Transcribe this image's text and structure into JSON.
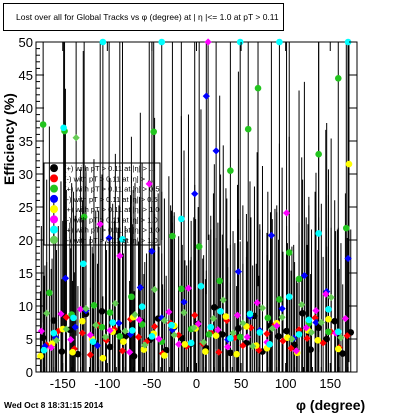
{
  "title": "Lost over all for Global Tracks vs φ (degree) at | η |<= 1.0 at pT > 0.11",
  "timestamp": "Wed Oct  8 18:31:15 2014",
  "colors": {
    "black": "#000000",
    "red": "#ff0000",
    "green": "#22c41e",
    "blue": "#0000ff",
    "yellow": "#ffff00",
    "magenta": "#ff00ff",
    "cyan": "#00ffff",
    "lightgreen": "#66cc55"
  },
  "chart_data": {
    "type": "scatter",
    "xlabel": "φ (degree)",
    "ylabel": "Efficiency (%)",
    "xlim": [
      -180,
      180
    ],
    "ylim": [
      0,
      50
    ],
    "x_ticks": [
      -150,
      -100,
      -50,
      0,
      50,
      100,
      150
    ],
    "y_ticks": [
      0,
      5,
      10,
      15,
      20,
      25,
      30,
      35,
      40,
      45,
      50
    ],
    "grid": false,
    "legend_position": "left-middle",
    "legend_entries": [
      "(+) with pT > 0.11 at |η| > ...",
      "(-) with pT > 0.11 at |η| > ...",
      "(+) with pT > 0.11 at |η| > 0.5",
      "(-) with pT > 0.11 at |η| > 0.5",
      "(+) with pT > 0.11 at |η| > 1.0",
      "(-) with pT > 0.11 at |η| > 1.0",
      "(+) with pT > 0.11 at |η| > 1.0",
      "(-) with pT > 0.11 at |η| > 1.0"
    ],
    "series": [
      {
        "color": "#000000",
        "x": [
          -172,
          -160,
          -151,
          -142,
          -133,
          -124,
          -115,
          -106,
          -97,
          -88,
          -79,
          -70,
          -61,
          -52,
          -43,
          -34,
          -25,
          -16,
          -7,
          2,
          11,
          20,
          29,
          38,
          47,
          56,
          65,
          74,
          83,
          92,
          101,
          110,
          119,
          128,
          137,
          146,
          155,
          164,
          173
        ],
        "y": [
          5.2,
          7.8,
          3.1,
          6.4,
          2.7,
          8.8,
          4.5,
          9.2,
          3.8,
          6.1,
          5.5,
          2.4,
          7.6,
          4.9,
          8.1,
          3.3,
          6.8,
          5.1,
          4.2,
          7.3,
          3.6,
          9.8,
          5.7,
          2.9,
          6.6,
          4.4,
          8.5,
          3.1,
          7.0,
          5.4,
          6.2,
          4.1,
          8.9,
          3.4,
          6.7,
          5.0,
          7.7,
          2.8,
          6.0
        ]
      },
      {
        "color": "#ff0000",
        "x": [
          -168,
          -155,
          -146,
          -137,
          -128,
          -119,
          -110,
          -101,
          -92,
          -83,
          -74,
          -65,
          -56,
          -47,
          -38,
          -29,
          -20,
          -11,
          -2,
          7,
          16,
          25,
          34,
          43,
          52,
          61,
          70,
          79,
          88,
          97,
          106,
          115,
          124,
          133,
          142,
          151,
          160,
          169
        ],
        "y": [
          4.1,
          6.2,
          8.3,
          3.5,
          5.9,
          2.6,
          7.1,
          4.8,
          6.5,
          3.2,
          8.0,
          5.3,
          4.6,
          6.9,
          2.8,
          7.4,
          5.6,
          3.9,
          8.6,
          4.3,
          6.0,
          3.0,
          7.8,
          5.2,
          4.0,
          6.7,
          3.3,
          5.8,
          7.2,
          4.7,
          3.6,
          6.4,
          5.1,
          8.2,
          4.4,
          6.1,
          3.7,
          5.5
        ]
      },
      {
        "color": "#22c41e",
        "x": [
          -172,
          -165,
          -148,
          -140,
          -126,
          -115,
          -106,
          -97,
          -86,
          -73,
          -61,
          -48,
          -39,
          -27,
          -17,
          -6,
          3,
          14,
          26,
          38,
          49,
          58,
          69,
          80,
          93,
          104,
          115,
          126,
          137,
          148,
          159,
          168
        ],
        "y": [
          37.5,
          12.0,
          36.5,
          8.7,
          23.5,
          10.1,
          6.8,
          9.0,
          5.4,
          11.4,
          7.2,
          36.4,
          4.6,
          20.6,
          12.6,
          6.5,
          19.0,
          5.7,
          13.8,
          30.5,
          5.3,
          36.8,
          43.0,
          8.2,
          11.0,
          18.1,
          14.1,
          7.4,
          33.0,
          6.1,
          44.5,
          21.8
        ]
      },
      {
        "color": "#0000ff",
        "x": [
          -170,
          -158,
          -147,
          -136,
          -124,
          -111,
          -98,
          -87,
          -74,
          -63,
          -50,
          -39,
          -27,
          -14,
          -2,
          11,
          22,
          35,
          47,
          60,
          71,
          84,
          96,
          109,
          121,
          134,
          146,
          158,
          170
        ],
        "y": [
          3.9,
          5.2,
          14.2,
          6.8,
          9.3,
          4.0,
          20.3,
          7.4,
          5.7,
          12.8,
          18.3,
          8.2,
          6.4,
          10.6,
          27.0,
          41.8,
          33.5,
          4.9,
          15.2,
          8.4,
          6.3,
          20.7,
          9.6,
          5.1,
          14.6,
          7.5,
          12.2,
          6.0,
          17.2
        ]
      },
      {
        "color": "#ffff00",
        "x": [
          -175,
          -162,
          -150,
          -139,
          -128,
          -117,
          -105,
          -94,
          -82,
          -71,
          -59,
          -48,
          -36,
          -25,
          -13,
          -1,
          10,
          22,
          33,
          45,
          56,
          67,
          79,
          90,
          102,
          113,
          125,
          136,
          148,
          159,
          171
        ],
        "y": [
          2.4,
          4.3,
          6.5,
          3.0,
          7.7,
          5.0,
          2.1,
          6.1,
          4.6,
          8.3,
          3.4,
          5.8,
          2.5,
          7.0,
          4.2,
          6.6,
          3.1,
          5.5,
          8.4,
          2.7,
          6.9,
          4.0,
          3.6,
          7.4,
          5.2,
          2.9,
          6.3,
          4.8,
          8.0,
          3.5,
          31.5
        ]
      },
      {
        "color": "#ff00ff",
        "x": [
          -174,
          -163,
          -152,
          -141,
          -130,
          -119,
          -108,
          -97,
          -86,
          -75,
          -64,
          -53,
          -42,
          -31,
          -20,
          -9,
          2,
          13,
          24,
          35,
          46,
          57,
          68,
          79,
          90,
          101,
          112,
          123,
          134,
          145,
          156,
          167
        ],
        "y": [
          6.2,
          3.7,
          8.8,
          4.9,
          9.5,
          5.6,
          22.4,
          6.3,
          17.6,
          3.0,
          7.9,
          28.5,
          5.0,
          9.1,
          4.2,
          12.7,
          7.3,
          50.0,
          6.4,
          3.8,
          8.6,
          5.3,
          10.5,
          4.5,
          7.0,
          24.1,
          3.2,
          6.7,
          9.3,
          11.8,
          5.9,
          8.1
        ]
      },
      {
        "color": "#00ffff",
        "x": [
          -171,
          -160,
          -149,
          -138,
          -127,
          -116,
          -105,
          -94,
          -83,
          -72,
          -61,
          -50,
          -39,
          -28,
          -17,
          -6,
          5,
          16,
          27,
          38,
          49,
          60,
          71,
          82,
          93,
          104,
          115,
          126,
          137,
          148,
          159,
          170
        ],
        "y": [
          3.3,
          5.9,
          37.0,
          8.2,
          16.4,
          4.6,
          50.0,
          7.5,
          20.1,
          6.3,
          9.9,
          5.4,
          50.0,
          7.1,
          23.2,
          4.4,
          13.0,
          6.8,
          9.2,
          5.1,
          50.0,
          8.8,
          6.0,
          4.2,
          50.0,
          11.4,
          5.7,
          7.9,
          21.0,
          9.5,
          6.1,
          50.0
        ]
      },
      {
        "color": "#66cc55",
        "x": [
          -168,
          -157,
          -146,
          -135,
          -124,
          -113,
          -102,
          -91,
          -80,
          -69,
          -58,
          -47,
          -36,
          -25,
          -14,
          -3,
          8,
          19,
          30,
          41,
          52,
          63,
          74,
          85,
          96,
          107,
          118,
          129,
          140,
          151,
          162
        ],
        "y": [
          8.9,
          4.8,
          6.5,
          35.5,
          9.6,
          7.1,
          5.3,
          10.4,
          6.2,
          8.7,
          4.1,
          12.5,
          7.8,
          5.6,
          9.0,
          6.7,
          4.5,
          8.1,
          10.9,
          5.9,
          7.4,
          3.9,
          9.7,
          6.6,
          8.3,
          5.0,
          10.2,
          6.0,
          7.5,
          11.3,
          5.2
        ]
      }
    ]
  }
}
